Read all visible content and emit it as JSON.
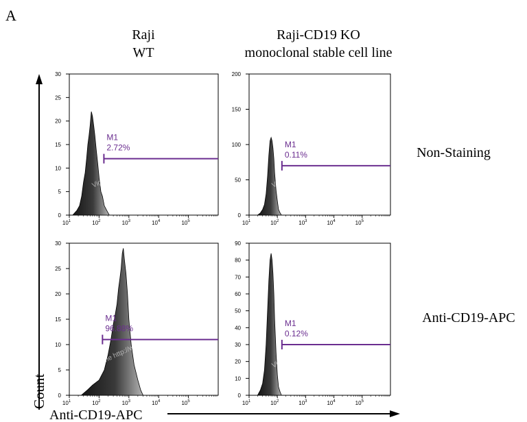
{
  "panel_label": "A",
  "columns": [
    {
      "line1": "Raji",
      "line2": "WT"
    },
    {
      "line1": "Raji-CD19 KO",
      "line2": "monoclonal stable cell line"
    }
  ],
  "rows": [
    "Non-Staining",
    "Anti-CD19-APC"
  ],
  "y_axis_label": "Count",
  "x_axis_label": "Anti-CD19-APC",
  "watermark": "Vigene http://www.vigenebio.com/",
  "colors": {
    "gate": "#6a2d8f",
    "hist_dark": "#151515",
    "hist_light": "#b4b4b4",
    "axis": "#000000"
  },
  "chart_data": [
    {
      "type": "area",
      "row": "Non-Staining",
      "column": "Raji WT",
      "x_scale": "log",
      "xlim": [
        10,
        1000000
      ],
      "x_ticks": [
        "10^1",
        "10^2",
        "10^3",
        "10^4",
        "10^5"
      ],
      "ylim": [
        0,
        30
      ],
      "y_ticks": [
        0,
        5,
        10,
        15,
        20,
        25,
        30
      ],
      "gate": {
        "name": "M1",
        "percent": "2.72%",
        "start": 145,
        "level": 12
      },
      "series": [
        {
          "x": [
            13,
            18,
            22,
            26,
            30,
            34,
            38,
            42,
            46,
            50,
            55,
            60,
            66,
            72,
            80,
            90,
            100,
            115,
            130,
            150,
            180,
            220
          ],
          "values": [
            0,
            1,
            2,
            4,
            7,
            9,
            12,
            15,
            17,
            19,
            22,
            21,
            19,
            17,
            14,
            11,
            8,
            5,
            4,
            2,
            1,
            0
          ]
        }
      ]
    },
    {
      "type": "area",
      "row": "Non-Staining",
      "column": "Raji-CD19 KO monoclonal stable cell line",
      "x_scale": "log",
      "xlim": [
        10,
        1000000
      ],
      "x_ticks": [
        "10^1",
        "10^2",
        "10^3",
        "10^4",
        "10^5"
      ],
      "ylim": [
        0,
        200
      ],
      "y_ticks": [
        0,
        50,
        100,
        150,
        200
      ],
      "gate": {
        "name": "M1",
        "percent": "0.11%",
        "start": 145,
        "level": 70
      },
      "series": [
        {
          "x": [
            20,
            25,
            30,
            35,
            40,
            45,
            50,
            55,
            60,
            65,
            70,
            75,
            80,
            90,
            100,
            110,
            125,
            140
          ],
          "values": [
            0,
            3,
            8,
            15,
            30,
            55,
            85,
            105,
            110,
            105,
            95,
            80,
            60,
            35,
            20,
            8,
            3,
            0
          ]
        }
      ]
    },
    {
      "type": "area",
      "row": "Anti-CD19-APC",
      "column": "Raji WT",
      "x_scale": "log",
      "xlim": [
        10,
        1000000
      ],
      "x_ticks": [
        "10^1",
        "10^2",
        "10^3",
        "10^4",
        "10^5"
      ],
      "ylim": [
        0,
        30
      ],
      "y_ticks": [
        0,
        5,
        10,
        15,
        20,
        25,
        30
      ],
      "gate": {
        "name": "M1",
        "percent": "96.88%",
        "start": 130,
        "level": 11
      },
      "series": [
        {
          "x": [
            25,
            40,
            60,
            100,
            150,
            200,
            250,
            300,
            350,
            400,
            450,
            500,
            550,
            600,
            650,
            700,
            800,
            900,
            1000,
            1200,
            1500,
            2000,
            2500,
            3000
          ],
          "values": [
            0,
            1,
            2,
            3,
            5,
            8,
            11,
            14,
            16,
            18,
            21,
            23,
            25,
            28,
            29,
            27,
            24,
            20,
            15,
            10,
            6,
            3,
            1,
            0
          ]
        }
      ]
    },
    {
      "type": "area",
      "row": "Anti-CD19-APC",
      "column": "Raji-CD19 KO monoclonal stable cell line",
      "x_scale": "log",
      "xlim": [
        10,
        1000000
      ],
      "x_ticks": [
        "10^1",
        "10^2",
        "10^3",
        "10^4",
        "10^5"
      ],
      "ylim": [
        0,
        90
      ],
      "y_ticks": [
        0,
        10,
        20,
        30,
        40,
        50,
        60,
        70,
        80,
        90
      ],
      "gate": {
        "name": "M1",
        "percent": "0.12%",
        "start": 145,
        "level": 30
      },
      "series": [
        {
          "x": [
            20,
            25,
            30,
            35,
            40,
            45,
            50,
            55,
            60,
            65,
            70,
            75,
            80,
            90,
            100,
            110,
            125,
            140
          ],
          "values": [
            0,
            3,
            7,
            15,
            30,
            50,
            68,
            80,
            84,
            80,
            72,
            60,
            45,
            25,
            12,
            5,
            2,
            0
          ]
        }
      ]
    }
  ]
}
